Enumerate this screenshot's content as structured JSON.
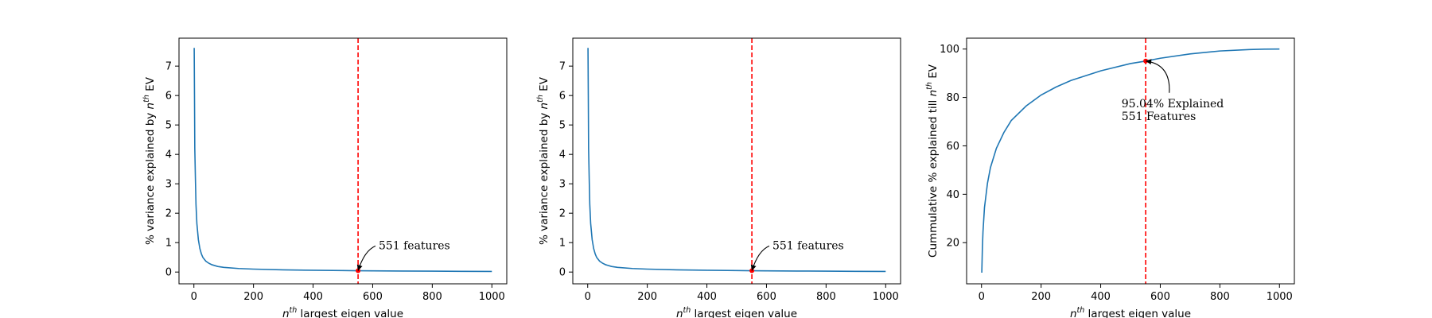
{
  "chart_data": [
    {
      "type": "line",
      "xlabel": "largest eigen value",
      "xlabel_sup": "th",
      "ylabel": "% variance explained by",
      "ylabel_sup": "th",
      "ylabel_suffix": "EV",
      "xlim": [
        -50,
        1050
      ],
      "ylim": [
        -0.4,
        7.95
      ],
      "xticks": [
        0,
        200,
        400,
        600,
        800,
        1000
      ],
      "yticks": [
        0,
        1,
        2,
        3,
        4,
        5,
        6,
        7
      ],
      "grid": false,
      "series": [
        {
          "color": "#1f77b4",
          "x": [
            1,
            2,
            3,
            5,
            7,
            10,
            15,
            20,
            25,
            30,
            40,
            50,
            60,
            80,
            100,
            150,
            200,
            300,
            400,
            500,
            551,
            600,
            700,
            800,
            900,
            1000
          ],
          "y": [
            7.62,
            6.0,
            4.2,
            3.2,
            2.3,
            1.65,
            1.1,
            0.8,
            0.62,
            0.5,
            0.37,
            0.3,
            0.25,
            0.19,
            0.16,
            0.12,
            0.1,
            0.075,
            0.06,
            0.05,
            0.045,
            0.04,
            0.035,
            0.03,
            0.025,
            0.02
          ]
        }
      ],
      "vline": {
        "x": 551,
        "color": "#ff0000",
        "style": "dashed"
      },
      "marker": {
        "x": 551,
        "y": 0.045,
        "color": "#ff0000"
      },
      "annotation": {
        "lines": [
          "551 features"
        ],
        "text_x": 620,
        "text_y": 0.78,
        "point_x": 551,
        "point_y": 0.045
      }
    },
    {
      "type": "line",
      "xlabel": "largest eigen value",
      "xlabel_sup": "th",
      "ylabel": "% variance explained by",
      "ylabel_sup": "th",
      "ylabel_suffix": "EV",
      "xlim": [
        -50,
        1050
      ],
      "ylim": [
        -0.4,
        7.95
      ],
      "xticks": [
        0,
        200,
        400,
        600,
        800,
        1000
      ],
      "yticks": [
        0,
        1,
        2,
        3,
        4,
        5,
        6,
        7
      ],
      "grid": false,
      "series": [
        {
          "color": "#1f77b4",
          "x": [
            1,
            2,
            3,
            5,
            7,
            10,
            15,
            20,
            25,
            30,
            40,
            50,
            60,
            80,
            100,
            150,
            200,
            300,
            400,
            500,
            551,
            600,
            700,
            800,
            900,
            1000
          ],
          "y": [
            7.62,
            6.0,
            4.2,
            3.2,
            2.3,
            1.65,
            1.1,
            0.8,
            0.62,
            0.5,
            0.37,
            0.3,
            0.25,
            0.19,
            0.16,
            0.12,
            0.1,
            0.075,
            0.06,
            0.05,
            0.045,
            0.04,
            0.035,
            0.03,
            0.025,
            0.02
          ]
        }
      ],
      "vline": {
        "x": 551,
        "color": "#ff0000",
        "style": "dashed"
      },
      "marker": {
        "x": 551,
        "y": 0.045,
        "color": "#ff0000"
      },
      "annotation": {
        "lines": [
          "551 features"
        ],
        "text_x": 620,
        "text_y": 0.78,
        "point_x": 551,
        "point_y": 0.045
      }
    },
    {
      "type": "line",
      "xlabel": "largest eigen value",
      "xlabel_sup": "th",
      "ylabel": "Cummulative % explained till",
      "ylabel_sup": "th",
      "ylabel_suffix": "EV",
      "xlim": [
        -50,
        1050
      ],
      "ylim": [
        3,
        104.5
      ],
      "xticks": [
        0,
        200,
        400,
        600,
        800,
        1000
      ],
      "yticks": [
        20,
        40,
        60,
        80,
        100
      ],
      "grid": false,
      "series": [
        {
          "color": "#1f77b4",
          "x": [
            1,
            3,
            5,
            10,
            20,
            30,
            50,
            75,
            100,
            150,
            200,
            250,
            300,
            400,
            500,
            551,
            600,
            700,
            800,
            900,
            950,
            1000
          ],
          "y": [
            7.6,
            18,
            24.5,
            34.5,
            44.5,
            51,
            59,
            65.5,
            70.5,
            76.5,
            81,
            84.3,
            87,
            91,
            94,
            95.04,
            96.2,
            98,
            99.2,
            99.8,
            99.95,
            100
          ]
        }
      ],
      "vline": {
        "x": 551,
        "color": "#ff0000",
        "style": "dashed"
      },
      "marker": {
        "x": 551,
        "y": 95.04,
        "color": "#ff0000"
      },
      "annotation": {
        "lines": [
          "95.04% Explained",
          "551 Features"
        ],
        "text_x": 470,
        "text_y": 76,
        "point_x": 551,
        "point_y": 95.04
      }
    }
  ]
}
